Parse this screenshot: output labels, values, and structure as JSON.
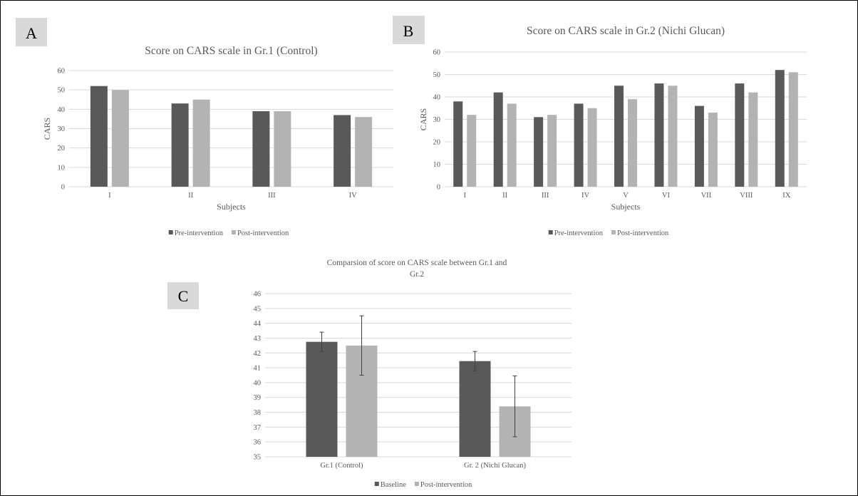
{
  "colors": {
    "series_dark": "#595959",
    "series_light": "#b3b3b3",
    "grid": "#d9d9d9",
    "axis_text": "#595959",
    "title_text": "#595959",
    "panel_label_bg": "#d9d9d9",
    "frame": "#000000"
  },
  "panel_labels": {
    "a": "A",
    "b": "B",
    "c": "C"
  },
  "chart_data": [
    {
      "id": "A",
      "type": "bar",
      "title": "Score on CARS scale in Gr.1 (Control)",
      "xlabel": "Subjects",
      "ylabel": "CARS",
      "ylim": [
        0,
        60
      ],
      "yticks": [
        0,
        10,
        20,
        30,
        40,
        50,
        60
      ],
      "grid": true,
      "legend_position": "bottom",
      "categories": [
        "I",
        "II",
        "III",
        "IV"
      ],
      "series": [
        {
          "name": "Pre-intervention",
          "color": "#595959",
          "values": [
            52,
            43,
            39,
            37
          ]
        },
        {
          "name": "Post-intervention",
          "color": "#b3b3b3",
          "values": [
            50,
            45,
            39,
            36
          ]
        }
      ]
    },
    {
      "id": "B",
      "type": "bar",
      "title": "Score on CARS scale in Gr.2 (Nichi Glucan)",
      "xlabel": "Subjects",
      "ylabel": "CARS",
      "ylim": [
        0,
        60
      ],
      "yticks": [
        0,
        10,
        20,
        30,
        40,
        50,
        60
      ],
      "grid": true,
      "legend_position": "bottom",
      "categories": [
        "I",
        "II",
        "III",
        "IV",
        "V",
        "VI",
        "VII",
        "VIII",
        "IX"
      ],
      "series": [
        {
          "name": "Pre-intervention",
          "color": "#595959",
          "values": [
            38,
            42,
            31,
            37,
            45,
            46,
            36,
            46,
            52
          ]
        },
        {
          "name": "Post-intervention",
          "color": "#b3b3b3",
          "values": [
            32,
            37,
            32,
            35,
            39,
            45,
            33,
            42,
            51
          ]
        }
      ]
    },
    {
      "id": "C",
      "type": "bar",
      "title_lines": [
        "Comparsion of score on CARS scale between Gr.1 and",
        "Gr.2"
      ],
      "xlabel": "",
      "ylabel": "",
      "ylim": [
        35,
        46
      ],
      "yticks": [
        35,
        36,
        37,
        38,
        39,
        40,
        41,
        42,
        43,
        44,
        45,
        46
      ],
      "grid": true,
      "legend_position": "bottom",
      "categories": [
        "Gr.1 (Control)",
        "Gr. 2 (Nichi Glucan)"
      ],
      "series": [
        {
          "name": "Baseline",
          "color": "#595959",
          "values": [
            42.75,
            41.45
          ],
          "error": [
            0.65,
            0.65
          ]
        },
        {
          "name": "Post-intervention",
          "color": "#b3b3b3",
          "values": [
            42.5,
            38.4
          ],
          "error": [
            2.0,
            2.05
          ]
        }
      ]
    }
  ]
}
